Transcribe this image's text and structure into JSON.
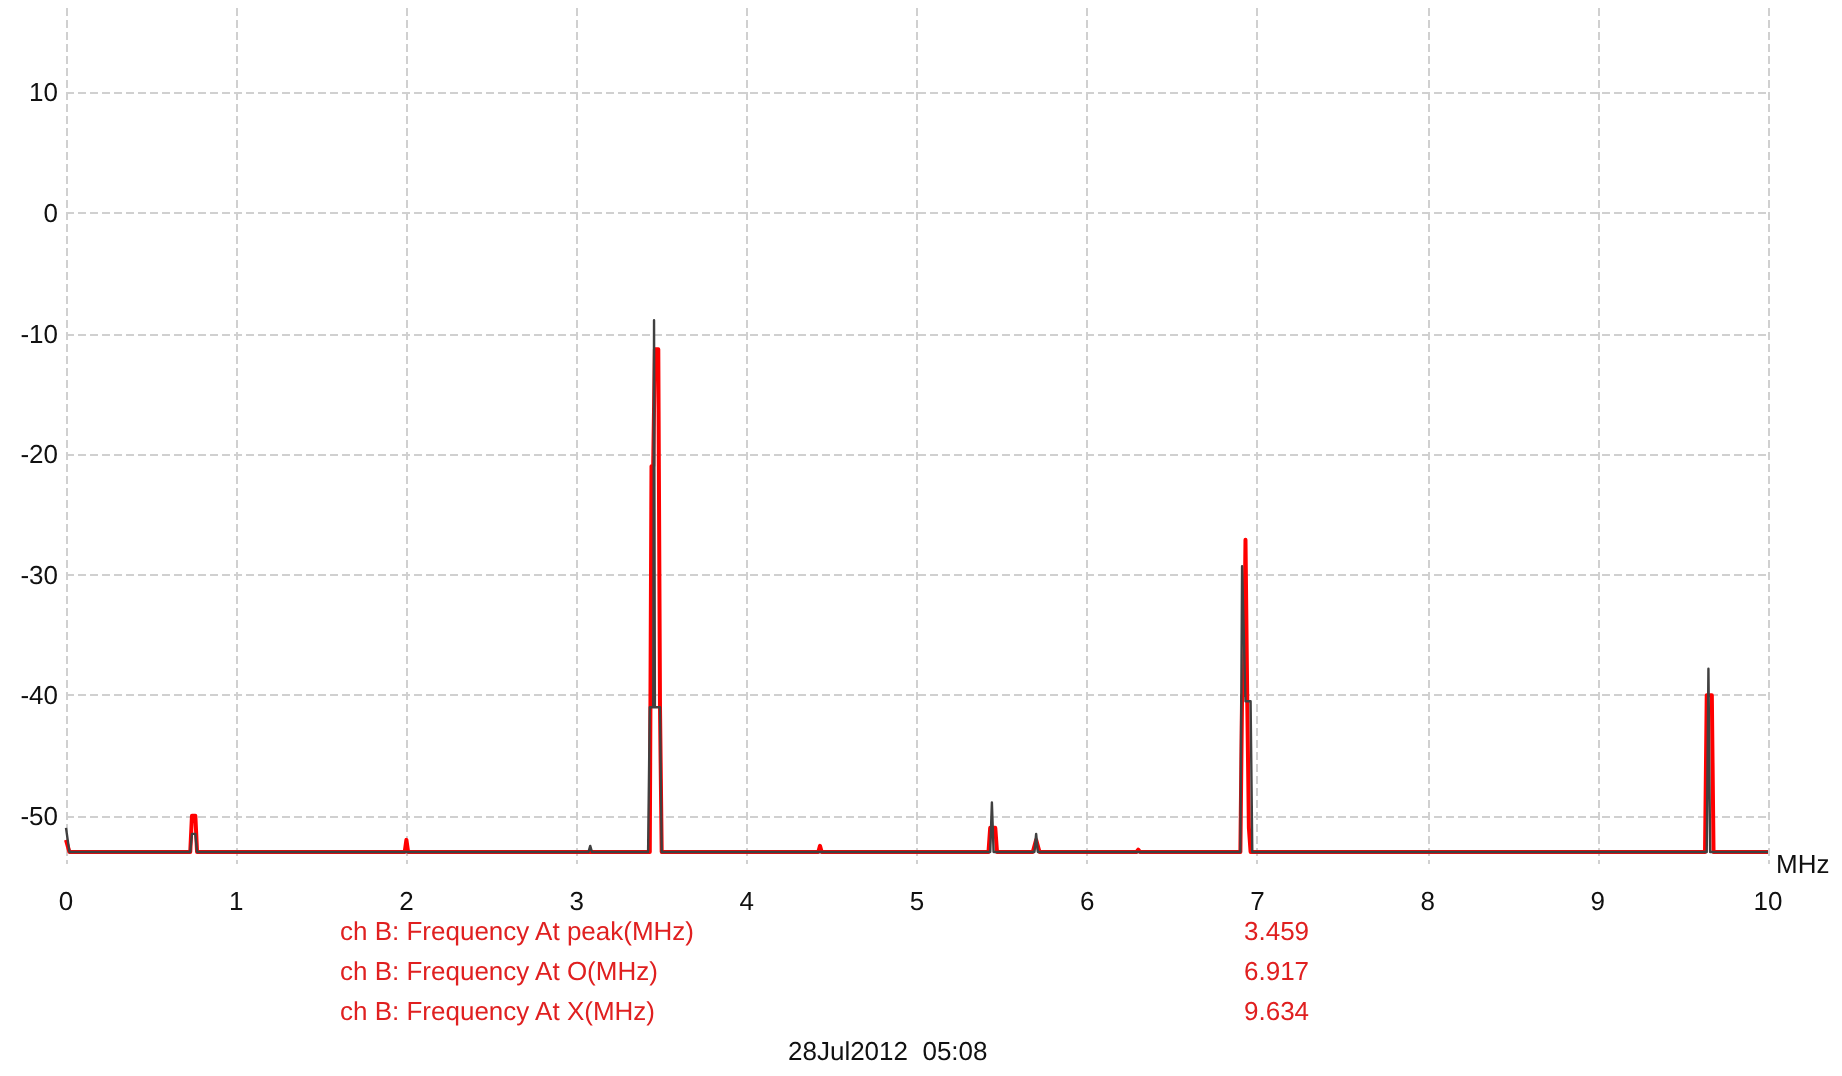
{
  "chart_data": {
    "type": "line",
    "xlabel": "MHz",
    "xlim": [
      0,
      10
    ],
    "xticks": [
      0,
      1,
      2,
      3,
      4,
      5,
      6,
      7,
      8,
      9,
      10
    ],
    "ylim": [
      -54,
      17
    ],
    "yticks": [
      -50,
      -40,
      -30,
      -20,
      -10,
      0,
      10
    ],
    "grid": true,
    "marker": "none",
    "line_style": "solid",
    "series": [
      {
        "color": "#ff0000",
        "x": [
          0,
          0.02,
          0.73,
          0.74,
          0.76,
          0.77,
          1.99,
          2.0,
          2.01,
          3.43,
          3.44,
          3.45,
          3.46,
          3.48,
          3.49,
          3.5,
          4.42,
          4.43,
          4.44,
          5.42,
          5.43,
          5.46,
          5.47,
          5.68,
          5.7,
          5.72,
          6.29,
          6.3,
          6.31,
          6.9,
          6.91,
          6.92,
          6.93,
          6.94,
          6.95,
          6.96,
          9.63,
          9.64,
          9.67,
          9.68,
          10
        ],
        "values": [
          -52,
          -53,
          -53,
          -50,
          -50,
          -53,
          -53,
          -52,
          -53,
          -53,
          -21,
          -21,
          -11.3,
          -11.3,
          -41,
          -53,
          -53,
          -52.5,
          -53,
          -53,
          -51,
          -51,
          -53,
          -53,
          -52,
          -53,
          -53,
          -52.8,
          -53,
          -53,
          -40,
          -40,
          -27.1,
          -40,
          -51,
          -53,
          -53,
          -40,
          -40,
          -53,
          -53
        ]
      },
      {
        "color": "#404040",
        "x": [
          0,
          0.02,
          0.73,
          0.74,
          0.76,
          0.77,
          3.07,
          3.08,
          3.09,
          3.42,
          3.43,
          3.45,
          3.455,
          3.46,
          3.49,
          3.5,
          5.43,
          5.44,
          5.45,
          5.69,
          5.7,
          5.71,
          6.9,
          6.91,
          6.93,
          6.96,
          6.97,
          9.64,
          9.65,
          9.66,
          10
        ],
        "values": [
          -51,
          -53,
          -53,
          -51.5,
          -51.5,
          -53,
          -53,
          -52.5,
          -53,
          -53,
          -41,
          -41,
          -8.9,
          -41,
          -41,
          -53,
          -53,
          -48.9,
          -53,
          -53,
          -51.5,
          -53,
          -53,
          -29.3,
          -40.5,
          -40.5,
          -53,
          -53,
          -37.8,
          -53,
          -53
        ]
      }
    ],
    "annotations": [
      "ch B: Frequency At peak(MHz)",
      "3.459",
      "ch B: Frequency At O(MHz)",
      "6.917",
      "ch B: Frequency At X(MHz)",
      "9.634",
      "28Jul2012  05:08"
    ]
  }
}
